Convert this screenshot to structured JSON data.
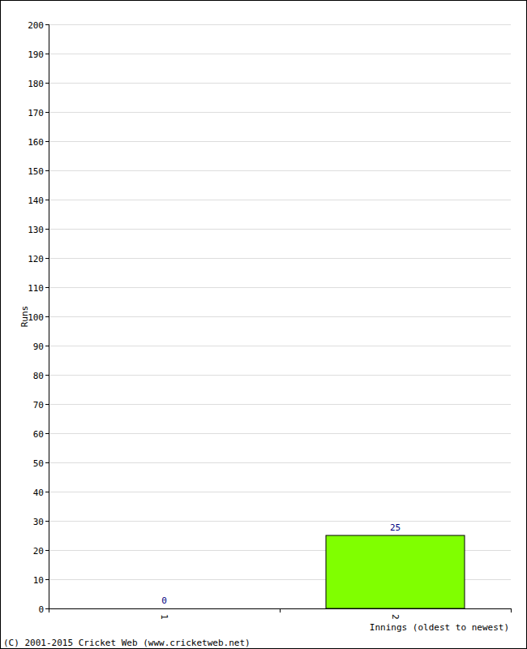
{
  "chart_data": {
    "type": "bar",
    "y_label": "Runs",
    "x_label": "Innings (oldest to newest)",
    "annotations": [
      "(C) 2001-2015 Cricket Web (www.cricketweb.net)"
    ],
    "categories": [
      "1",
      "2"
    ],
    "values": [
      0,
      25
    ],
    "color": "#80ff00",
    "ylim": [
      0,
      200
    ],
    "yticks": [
      0,
      10,
      20,
      30,
      40,
      50,
      60,
      70,
      80,
      90,
      100,
      110,
      120,
      130,
      140,
      150,
      160,
      170,
      180,
      190,
      200
    ],
    "grid": true,
    "data_labels": true
  }
}
